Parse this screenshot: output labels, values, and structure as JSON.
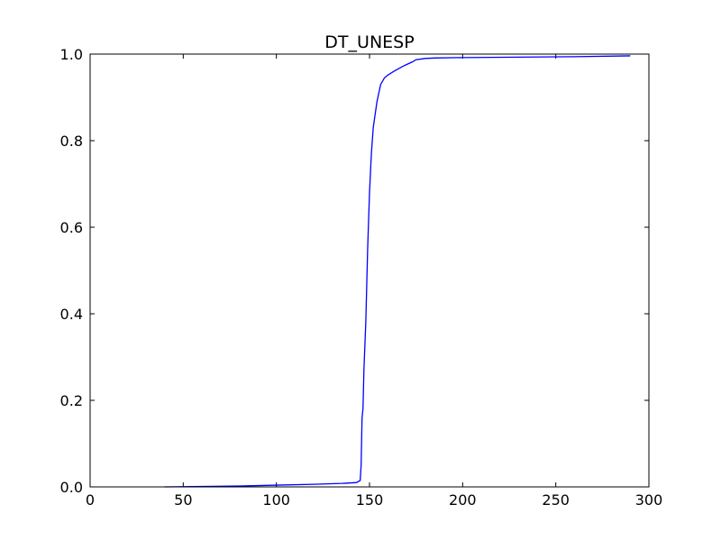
{
  "chart_data": {
    "type": "line",
    "title": "DT_UNESP",
    "xlabel": "",
    "ylabel": "",
    "xlim": [
      0,
      300
    ],
    "ylim": [
      0,
      1
    ],
    "xticks": [
      0,
      50,
      100,
      150,
      200,
      250,
      300
    ],
    "yticks": [
      0.0,
      0.2,
      0.4,
      0.6,
      0.8,
      1.0
    ],
    "xtick_labels": [
      "0",
      "50",
      "100",
      "150",
      "200",
      "250",
      "300"
    ],
    "ytick_labels": [
      "0.0",
      "0.2",
      "0.4",
      "0.6",
      "0.8",
      "1.0"
    ],
    "grid": false,
    "legend": "none",
    "series": [
      {
        "color": "#0000ff",
        "x": [
          40,
          60,
          80,
          100,
          120,
          135,
          143,
          145,
          145.5,
          146,
          146.5,
          147,
          148,
          149,
          150,
          151,
          152,
          153,
          154,
          155,
          156,
          158,
          160,
          163,
          165,
          168,
          170,
          173,
          175,
          180,
          185,
          200,
          230,
          260,
          290
        ],
        "y": [
          0.0,
          0.001,
          0.002,
          0.004,
          0.006,
          0.008,
          0.01,
          0.015,
          0.05,
          0.16,
          0.18,
          0.27,
          0.38,
          0.55,
          0.68,
          0.77,
          0.83,
          0.86,
          0.89,
          0.91,
          0.93,
          0.945,
          0.952,
          0.96,
          0.965,
          0.972,
          0.976,
          0.982,
          0.987,
          0.99,
          0.991,
          0.992,
          0.993,
          0.994,
          0.996
        ]
      }
    ]
  }
}
